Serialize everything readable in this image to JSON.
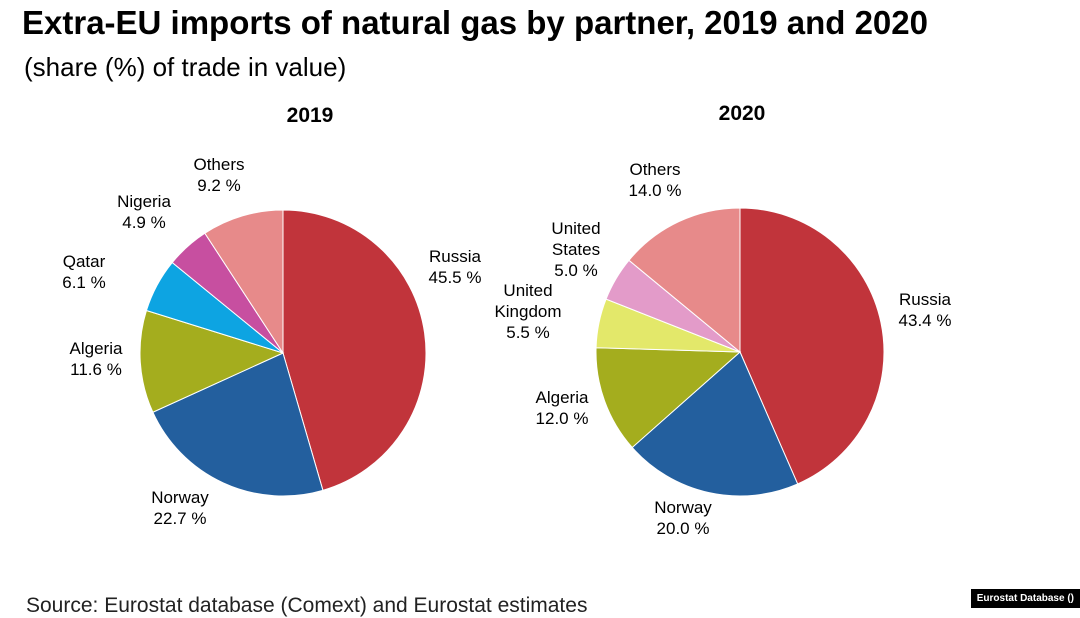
{
  "title": "Extra-EU imports of natural gas by partner, 2019 and 2020",
  "subtitle": "(share (%) of trade in value)",
  "source": "Source: Eurostat database (Comext) and Eurostat estimates",
  "credit": "Eurostat Database ()",
  "chart_data": [
    {
      "type": "pie",
      "title": "2019",
      "categories": [
        "Russia",
        "Norway",
        "Algeria",
        "Qatar",
        "Nigeria",
        "Others"
      ],
      "labels": [
        "Russia",
        "Norway",
        "Algeria",
        "Qatar",
        "Nigeria",
        "Others"
      ],
      "value_labels": [
        "45.5 %",
        "22.7 %",
        "11.6 %",
        "6.1 %",
        "4.9 %",
        "9.2 %"
      ],
      "values": [
        45.5,
        22.7,
        11.6,
        6.1,
        4.9,
        9.2
      ],
      "colors": [
        "#c1343b",
        "#235f9e",
        "#a4ad1e",
        "#0da4e2",
        "#c74fa0",
        "#e78a8a"
      ]
    },
    {
      "type": "pie",
      "title": "2020",
      "categories": [
        "Russia",
        "Norway",
        "Algeria",
        "United Kingdom",
        "United States",
        "Others"
      ],
      "labels": [
        "Russia",
        "Norway",
        "Algeria",
        "United\nKingdom",
        "United\nStates",
        "Others"
      ],
      "value_labels": [
        "43.4 %",
        "20.0 %",
        "12.0 %",
        "5.5 %",
        "5.0 %",
        "14.0 %"
      ],
      "values": [
        43.4,
        20.0,
        12.0,
        5.5,
        5.0,
        14.0
      ],
      "colors": [
        "#c1343b",
        "#235f9e",
        "#a4ad1e",
        "#e3e86a",
        "#e39bc9",
        "#e78a8a"
      ]
    }
  ]
}
